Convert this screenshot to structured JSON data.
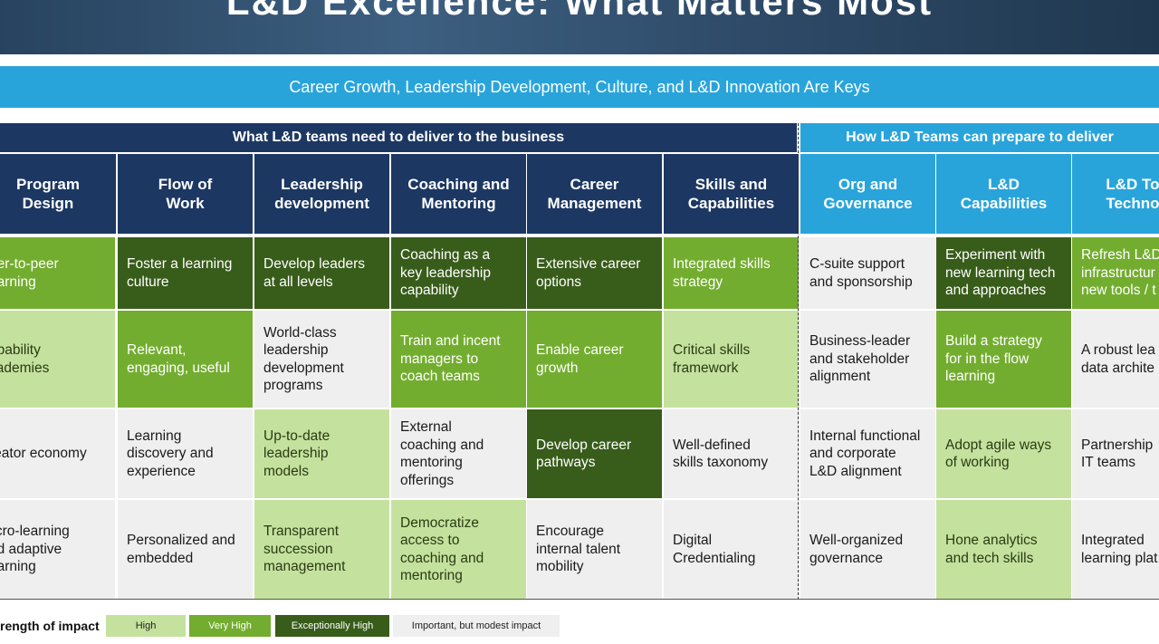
{
  "title": "L&D Excellence: What Matters Most",
  "subtitle": "Career Growth, Leadership Development, Culture, and L&D Innovation Are Keys",
  "colors": {
    "navy": "#1c3762",
    "sky": "#29a4db",
    "high": "#c4e29e",
    "very_high": "#73ad2f",
    "exceptionally_high": "#385c1a",
    "modest": "#efefef"
  },
  "sections": [
    {
      "label": "What L&D teams need to deliver to the business"
    },
    {
      "label": "How L&D Teams can prepare to deliver"
    }
  ],
  "columns": [
    {
      "header": "Program\nDesign",
      "cells": [
        {
          "text": "eer-to-peer\nearning",
          "level": "very_high"
        },
        {
          "text": "apability\ncademies",
          "level": "high"
        },
        {
          "text": "reator economy",
          "level": "modest"
        },
        {
          "text": "licro-learning\nnd adaptive\nearning",
          "level": "modest"
        }
      ]
    },
    {
      "header": "Flow of\nWork",
      "cells": [
        {
          "text": "Foster a learning\nculture",
          "level": "exceptionally_high"
        },
        {
          "text": "Relevant,\nengaging, useful",
          "level": "very_high"
        },
        {
          "text": "Learning\ndiscovery and\nexperience",
          "level": "modest"
        },
        {
          "text": "Personalized and\nembedded",
          "level": "modest"
        }
      ]
    },
    {
      "header": "Leadership\ndevelopment",
      "cells": [
        {
          "text": "Develop leaders\nat all levels",
          "level": "exceptionally_high"
        },
        {
          "text": "World-class\nleadership\ndevelopment\nprograms",
          "level": "modest"
        },
        {
          "text": "Up-to-date\nleadership\nmodels",
          "level": "high"
        },
        {
          "text": "Transparent\nsuccession\nmanagement",
          "level": "high"
        }
      ]
    },
    {
      "header": "Coaching and\nMentoring",
      "cells": [
        {
          "text": "Coaching as a\nkey leadership\ncapability",
          "level": "exceptionally_high"
        },
        {
          "text": "Train and incent\nmanagers to\ncoach teams",
          "level": "very_high"
        },
        {
          "text": "External\ncoaching and\nmentoring\nofferings",
          "level": "modest"
        },
        {
          "text": "Democratize\naccess to\ncoaching and\nmentoring",
          "level": "high"
        }
      ]
    },
    {
      "header": "Career\nManagement",
      "cells": [
        {
          "text": "Extensive career\noptions",
          "level": "exceptionally_high"
        },
        {
          "text": "Enable career\ngrowth",
          "level": "very_high"
        },
        {
          "text": "Develop career\npathways",
          "level": "exceptionally_high"
        },
        {
          "text": "Encourage\ninternal talent\nmobility",
          "level": "modest"
        }
      ]
    },
    {
      "header": "Skills and\nCapabilities",
      "cells": [
        {
          "text": "Integrated skills\nstrategy",
          "level": "very_high"
        },
        {
          "text": "Critical skills\nframework",
          "level": "high"
        },
        {
          "text": "Well-defined\nskills taxonomy",
          "level": "modest"
        },
        {
          "text": "Digital\nCredentialing",
          "level": "modest"
        }
      ]
    },
    {
      "header": "Org and\nGovernance",
      "cells": [
        {
          "text": "C-suite support\nand sponsorship",
          "level": "modest"
        },
        {
          "text": "Business-leader\nand stakeholder\nalignment",
          "level": "modest"
        },
        {
          "text": "Internal functional\nand corporate\nL&D alignment",
          "level": "modest"
        },
        {
          "text": "Well-organized\ngovernance",
          "level": "modest"
        }
      ]
    },
    {
      "header": "L&D\nCapabilities",
      "cells": [
        {
          "text": "Experiment with\nnew learning tech\nand approaches",
          "level": "exceptionally_high"
        },
        {
          "text": "Build a strategy\nfor in the flow\nlearning",
          "level": "very_high"
        },
        {
          "text": "Adopt agile ways\nof working",
          "level": "high"
        },
        {
          "text": "Hone analytics\nand tech skills",
          "level": "high"
        }
      ]
    },
    {
      "header": "L&D Tool\nTechnolo",
      "cells": [
        {
          "text": "Refresh L&D\ninfrastructur\nnew tools / t",
          "level": "very_high"
        },
        {
          "text": "A robust lea\ndata archite",
          "level": "modest"
        },
        {
          "text": "Partnership\nIT teams",
          "level": "modest"
        },
        {
          "text": "Integrated\nlearning plat",
          "level": "modest"
        }
      ]
    }
  ],
  "legend": {
    "label": "rength of impact",
    "items": [
      {
        "label": "High",
        "level": "high"
      },
      {
        "label": "Very High",
        "level": "very_high"
      },
      {
        "label": "Exceptionally High",
        "level": "exceptionally_high"
      },
      {
        "label": "Important, but modest impact",
        "level": "modest"
      }
    ]
  }
}
